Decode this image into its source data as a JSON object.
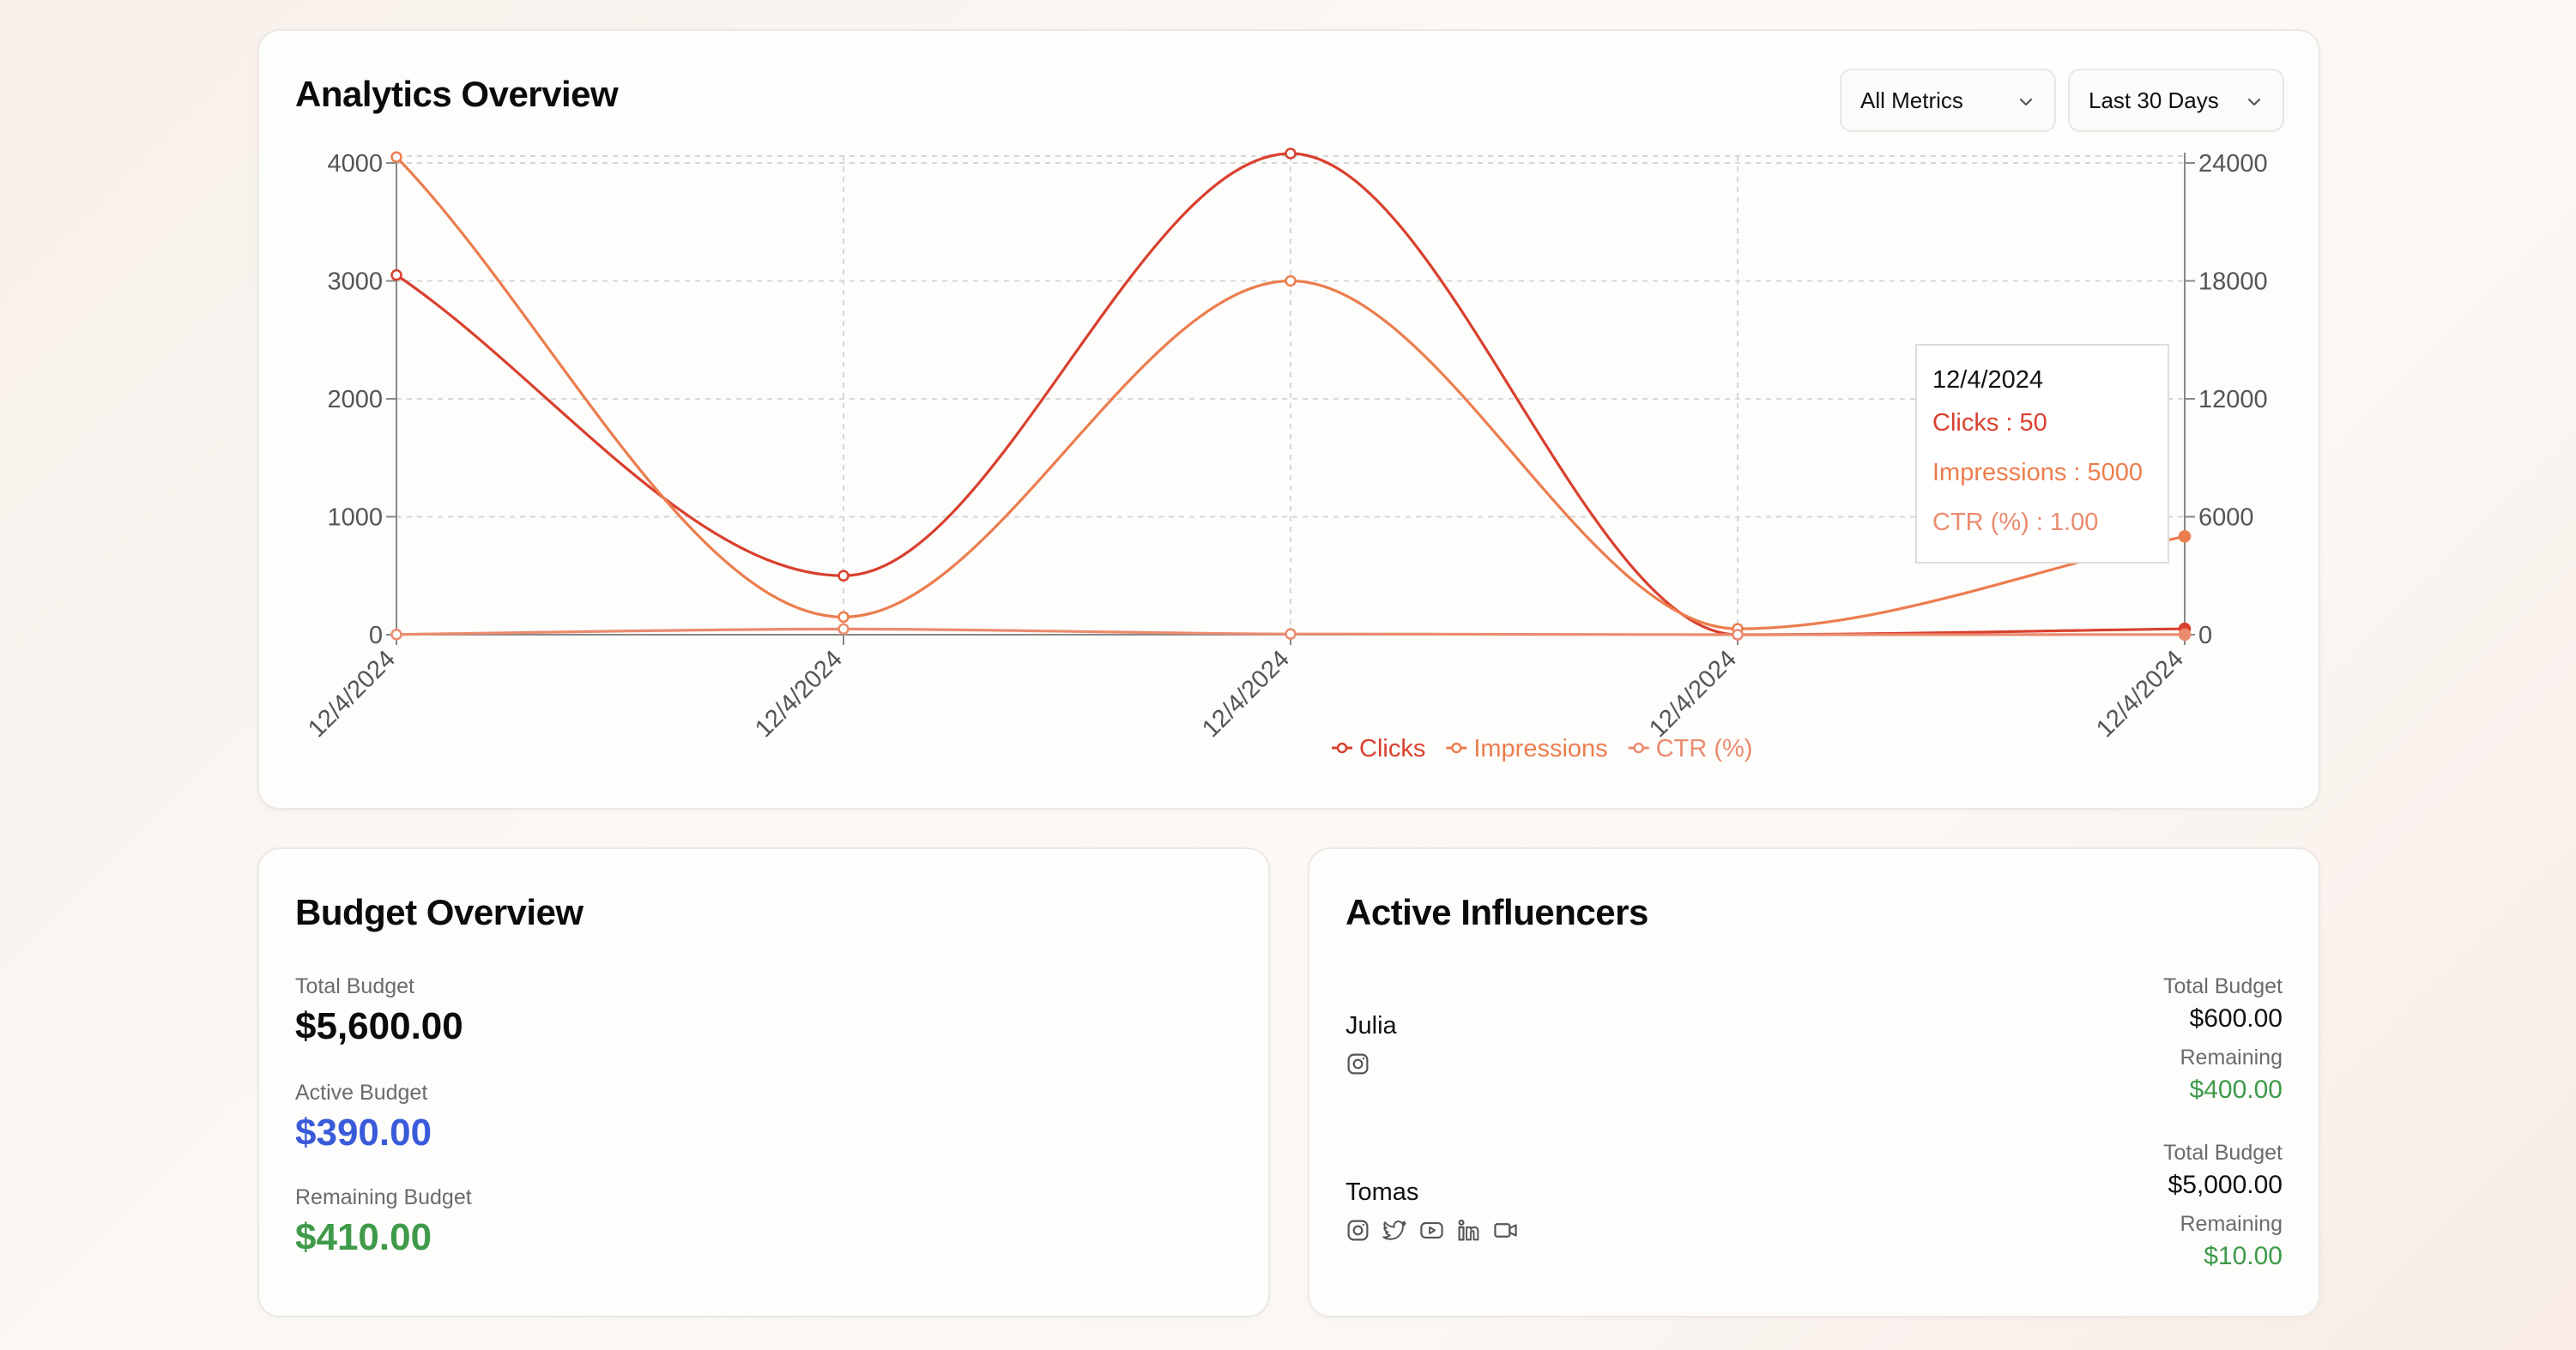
{
  "analytics": {
    "title": "Analytics Overview",
    "metric_select": "All Metrics",
    "range_select": "Last 30 Days",
    "tooltip": {
      "date": "12/4/2024",
      "clicks": "Clicks : 50",
      "impressions": "Impressions : 5000",
      "ctr": "CTR (%) : 1.00"
    }
  },
  "chart_data": {
    "type": "line",
    "x": [
      "12/4/2024",
      "12/4/2024",
      "12/4/2024",
      "12/4/2024",
      "12/4/2024"
    ],
    "y_left_ticks": [
      0,
      1000,
      2000,
      3000,
      4000
    ],
    "y_right_ticks": [
      0,
      6000,
      12000,
      18000,
      24000
    ],
    "y_left_lim": [
      0,
      4000
    ],
    "y_right_lim": [
      0,
      24000
    ],
    "grid": true,
    "legend_position": "bottom",
    "series": [
      {
        "name": "Clicks",
        "axis": "left",
        "color": "#d9402e",
        "values": [
          3050,
          500,
          4080,
          0,
          50
        ]
      },
      {
        "name": "Impressions",
        "axis": "right",
        "color": "#ec7d4e",
        "values": [
          24300,
          900,
          18000,
          300,
          5000
        ]
      },
      {
        "name": "CTR (%)",
        "axis": "left",
        "color": "#ea8b6e",
        "values": [
          2,
          48,
          6,
          0,
          1
        ]
      }
    ]
  },
  "budget": {
    "title": "Budget Overview",
    "total_label": "Total Budget",
    "total_value": "$5,600.00",
    "active_label": "Active Budget",
    "active_value": "$390.00",
    "remaining_label": "Remaining Budget",
    "remaining_value": "$410.00"
  },
  "influencers": {
    "title": "Active Influencers",
    "items": [
      {
        "name": "Julia",
        "total_label": "Total Budget",
        "total": "$600.00",
        "remaining_label": "Remaining",
        "remaining": "$400.00",
        "icons": [
          "instagram-icon"
        ]
      },
      {
        "name": "Tomas",
        "total_label": "Total Budget",
        "total": "$5,000.00",
        "remaining_label": "Remaining",
        "remaining": "$10.00",
        "icons": [
          "instagram-icon",
          "twitter-icon",
          "youtube-icon",
          "linkedin-icon",
          "video-icon"
        ]
      }
    ]
  },
  "colors": {
    "clicks": "#d9402e",
    "impressions": "#ec7d4e",
    "ctr": "#ea8b6e",
    "active_budget": "#3a5bd9",
    "remaining": "#3f9a4a"
  }
}
